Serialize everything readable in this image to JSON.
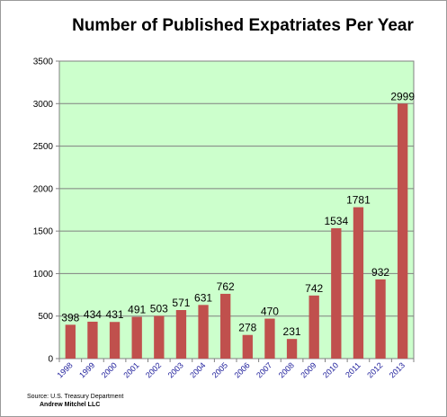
{
  "chart_data": {
    "type": "bar",
    "title": "Number of Published Expatriates Per Year",
    "xlabel": "",
    "ylabel": "",
    "categories": [
      "1998",
      "1999",
      "2000",
      "2001",
      "2002",
      "2003",
      "2004",
      "2005",
      "2006",
      "2007",
      "2008",
      "2009",
      "2010",
      "2011",
      "2012",
      "2013"
    ],
    "values": [
      398,
      434,
      431,
      491,
      503,
      571,
      631,
      762,
      278,
      470,
      231,
      742,
      1534,
      1781,
      932,
      2999
    ],
    "ylim": [
      0,
      3500
    ],
    "yticks": [
      0,
      500,
      1000,
      1500,
      2000,
      2500,
      3000,
      3500
    ],
    "grid": true,
    "legend": "none",
    "bar_color": "#c0504d",
    "plot_background": "#ccffcc"
  },
  "footer": {
    "source": "Source: U.S. Treasury Department",
    "author": "Andrew Mitchel LLC"
  }
}
